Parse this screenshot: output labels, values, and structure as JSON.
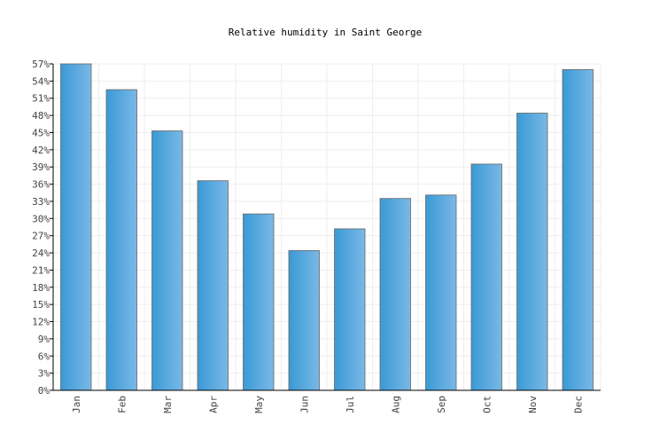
{
  "chart_data": {
    "type": "bar",
    "title": "Relative humidity in Saint George",
    "xlabel": "",
    "ylabel": "",
    "categories": [
      "Jan",
      "Feb",
      "Mar",
      "Apr",
      "May",
      "Jun",
      "Jul",
      "Aug",
      "Sep",
      "Oct",
      "Nov",
      "Dec"
    ],
    "values": [
      57,
      52.5,
      45.3,
      36.6,
      30.8,
      24.4,
      28.2,
      33.5,
      34.1,
      39.5,
      48.4,
      56
    ],
    "ylim": [
      0,
      57
    ],
    "yticks": [
      "0%",
      "3%",
      "6%",
      "9%",
      "12%",
      "15%",
      "18%",
      "21%",
      "24%",
      "27%",
      "30%",
      "33%",
      "36%",
      "39%",
      "42%",
      "45%",
      "48%",
      "51%",
      "54%",
      "57%"
    ],
    "ytick_values": [
      0,
      3,
      6,
      9,
      12,
      15,
      18,
      21,
      24,
      27,
      30,
      33,
      36,
      39,
      42,
      45,
      48,
      51,
      54,
      57
    ],
    "grid": true,
    "legend": "none",
    "colors": {
      "bar_light": "#7ab8e6",
      "bar_dark": "#3a9ad6",
      "bar_stroke": "#666666",
      "grid": "#eeeeee"
    }
  }
}
